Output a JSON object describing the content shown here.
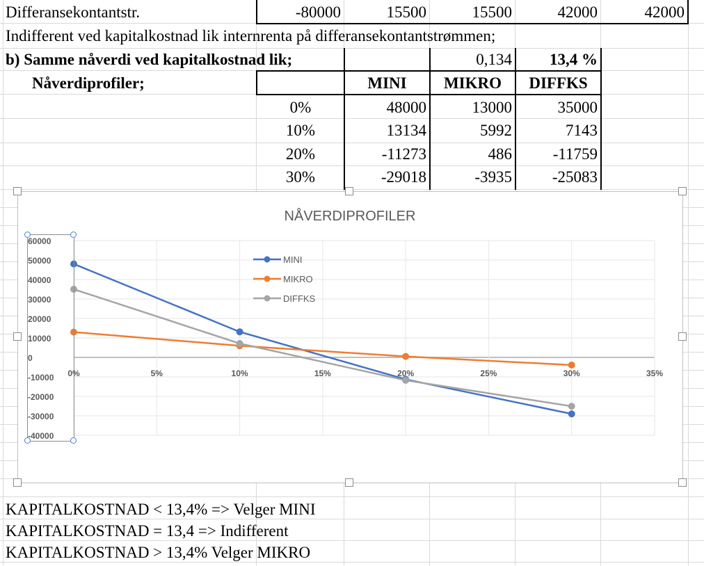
{
  "rows": {
    "row1": {
      "label": "Differansekontantstr.",
      "values": [
        "-80000",
        "15500",
        "15500",
        "42000",
        "42000"
      ]
    },
    "row2": {
      "text": "Indifferent ved kapitalkostnad lik internrenta på differansekontantstrømmen;"
    },
    "row3": {
      "label": "b)  Samme nåverdi ved kapitalkostnad lik;",
      "value1": "0,134",
      "value2": "13,4 %"
    },
    "row4": {
      "label": "Nåverdiprofiler;"
    }
  },
  "table": {
    "headers": [
      "MINI",
      "MIKRO",
      "DIFFKS"
    ],
    "rows": [
      {
        "rate": "0%",
        "mini": "48000",
        "mikro": "13000",
        "diffks": "35000"
      },
      {
        "rate": "10%",
        "mini": "13134",
        "mikro": "5992",
        "diffks": "7143"
      },
      {
        "rate": "20%",
        "mini": "-11273",
        "mikro": "486",
        "diffks": "-11759"
      },
      {
        "rate": "30%",
        "mini": "-29018",
        "mikro": "-3935",
        "diffks": "-25083"
      }
    ]
  },
  "conclusions": [
    "KAPITALKOSTNAD < 13,4% =>  Velger  MINI",
    "KAPITALKOSTNAD = 13,4 => Indifferent",
    "KAPITALKOSTNAD > 13,4% Velger MIKRO"
  ],
  "chart_data": {
    "type": "line",
    "title": "NÅVERDIPROFILER",
    "x": [
      0,
      10,
      20,
      30
    ],
    "xticks": [
      "0%",
      "5%",
      "10%",
      "15%",
      "20%",
      "25%",
      "30%",
      "35%"
    ],
    "xlim": [
      0,
      35
    ],
    "ylim": [
      -40000,
      60000
    ],
    "yticks": [
      "60000",
      "50000",
      "40000",
      "30000",
      "20000",
      "10000",
      "0",
      "-10000",
      "-20000",
      "-30000",
      "-40000"
    ],
    "grid": true,
    "legend_position": "top-center",
    "series": [
      {
        "name": "MINI",
        "color": "#4472c4",
        "values": [
          48000,
          13134,
          -11273,
          -29018
        ]
      },
      {
        "name": "MIKRO",
        "color": "#ed7d31",
        "values": [
          13000,
          5992,
          486,
          -3935
        ]
      },
      {
        "name": "DIFFKS",
        "color": "#a5a5a5",
        "values": [
          35000,
          7143,
          -11759,
          -25083
        ]
      }
    ]
  }
}
